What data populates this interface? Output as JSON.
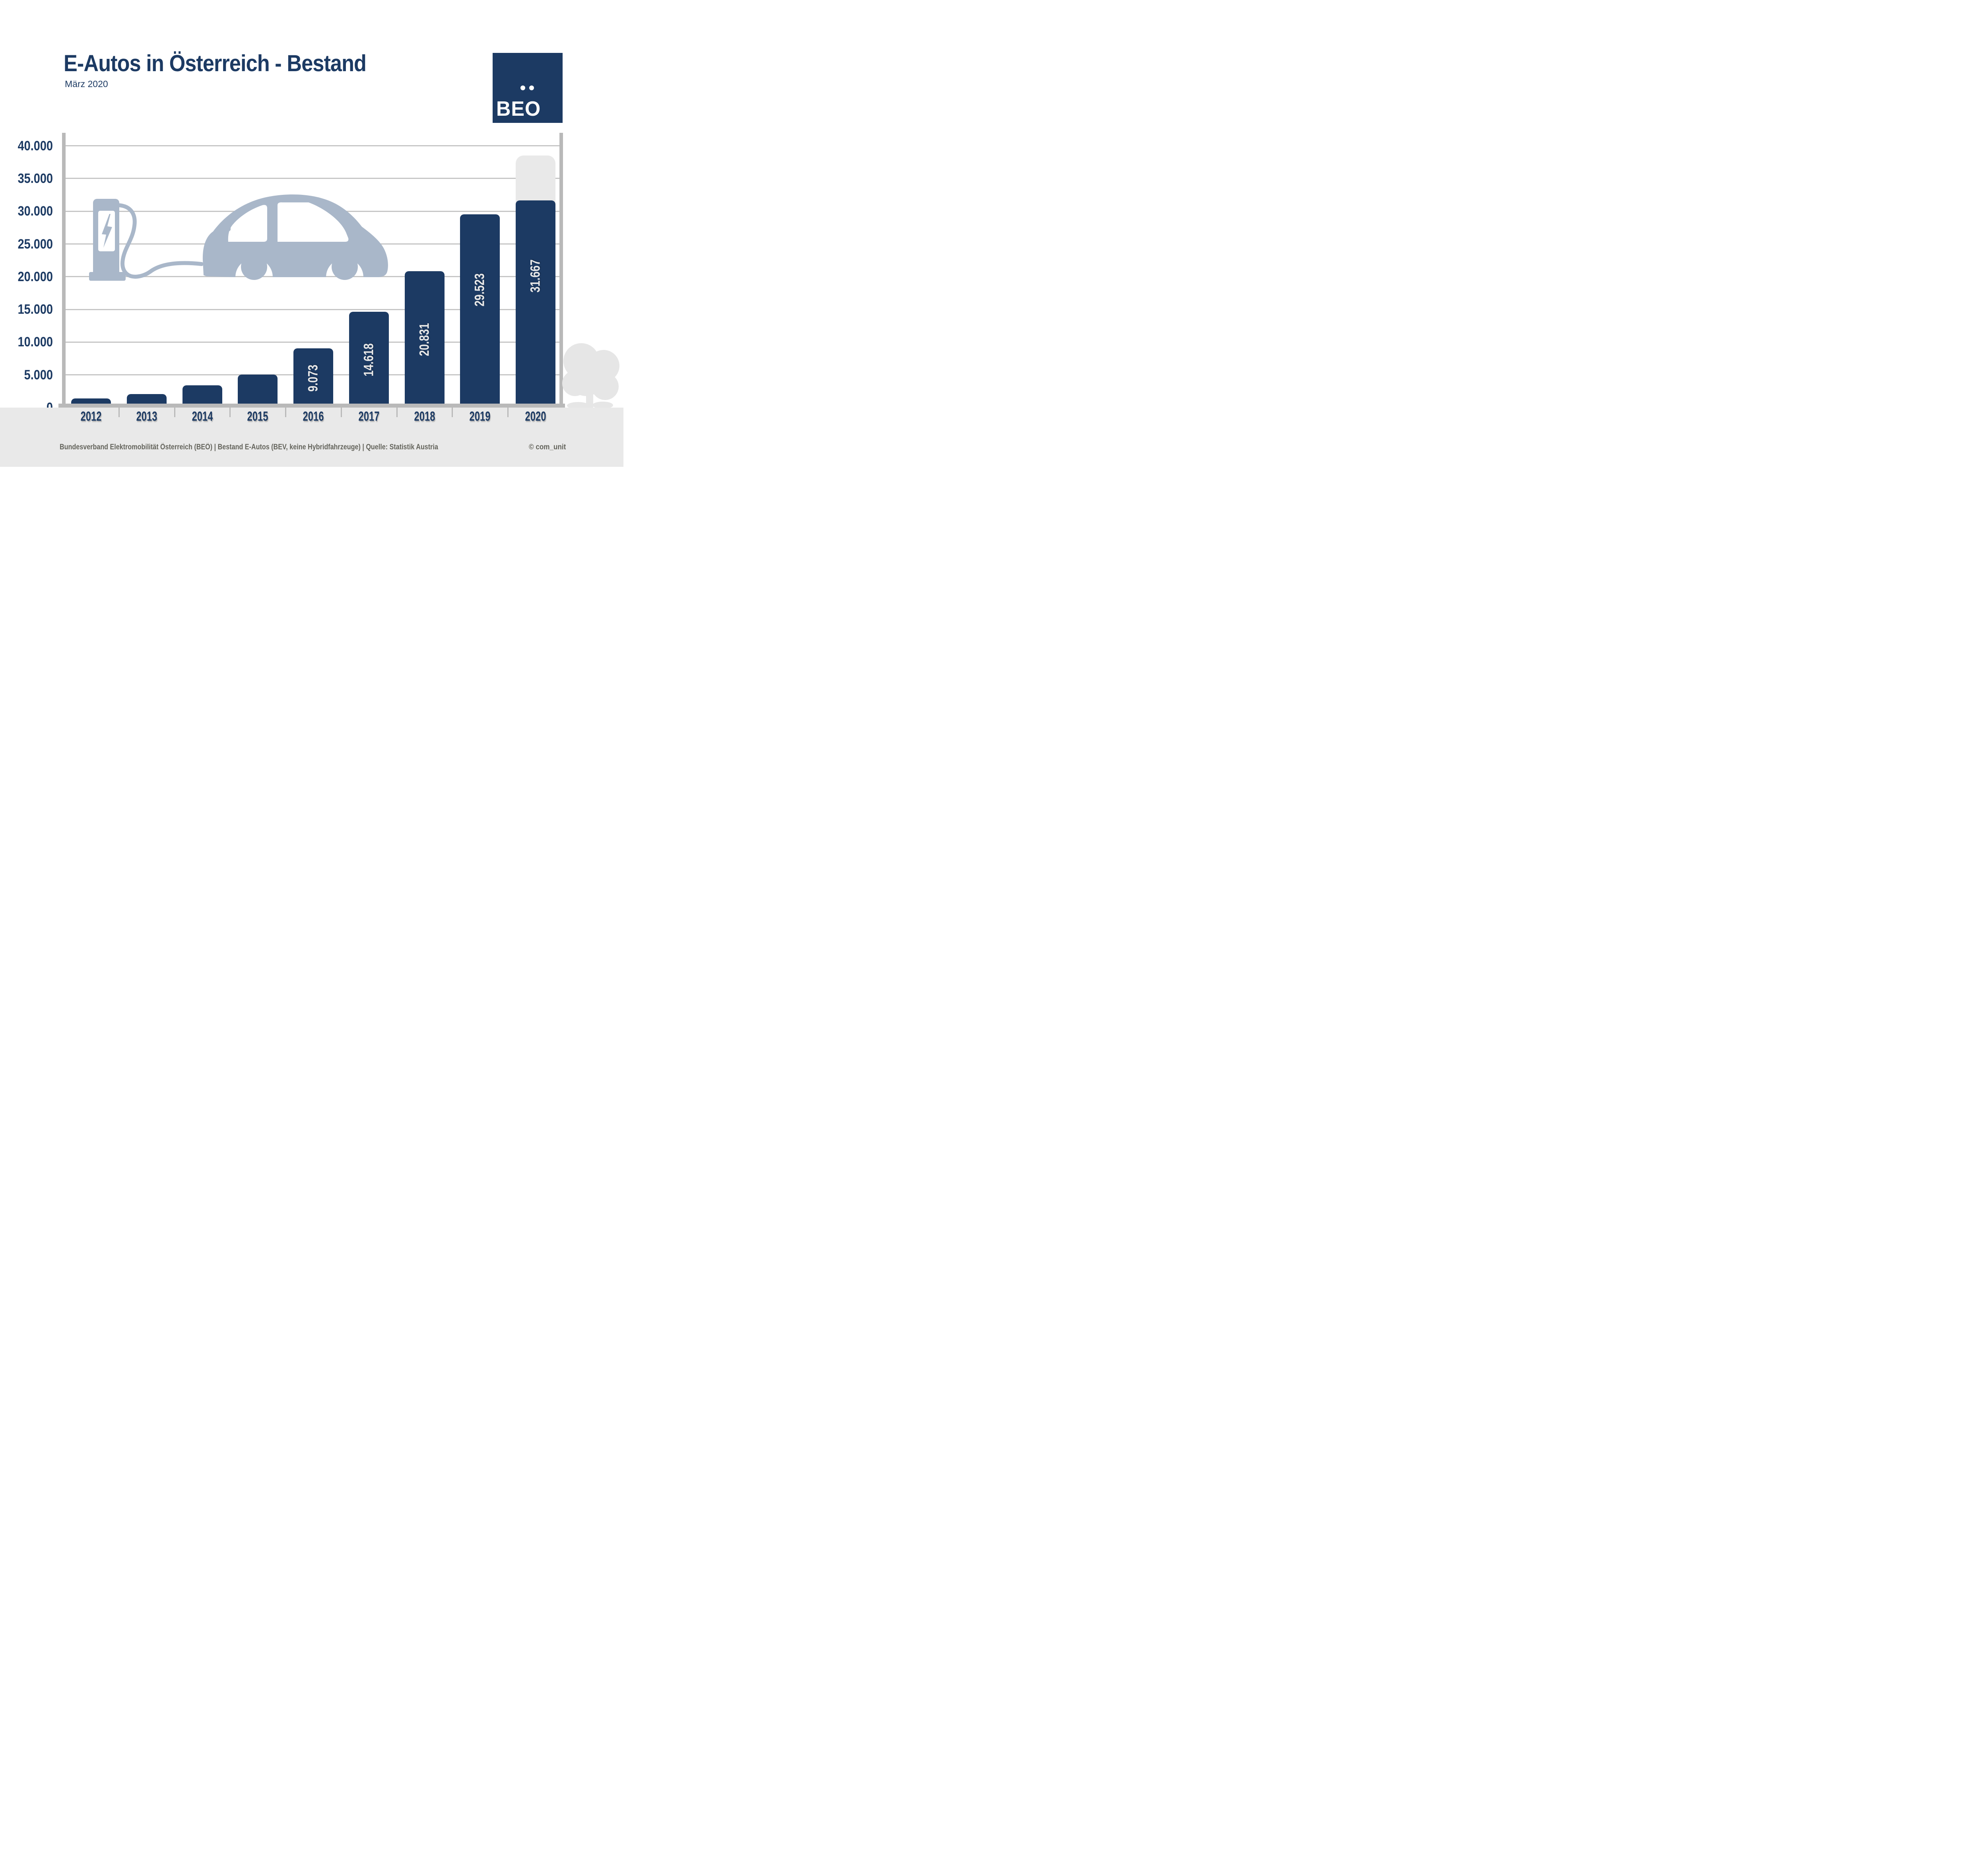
{
  "title": "E-Autos in Österreich - Bestand",
  "subtitle": "März 2020",
  "logo": {
    "text": "BEO",
    "dot_count": 2
  },
  "chart_data": {
    "type": "bar",
    "title": "E-Autos in Österreich - Bestand",
    "subtitle": "März 2020",
    "categories": [
      "2012",
      "2013",
      "2014",
      "2015",
      "2016",
      "2017",
      "2018",
      "2019",
      "2020"
    ],
    "values": [
      1389,
      2070,
      3386,
      5032,
      9073,
      14618,
      20831,
      29523,
      31667
    ],
    "bar_labels": [
      "",
      "",
      "",
      "",
      "9.073",
      "14.618",
      "20.831",
      "29.523",
      "31.667"
    ],
    "values_note": "2012-2015 bars are unlabeled; values estimated from bar heights",
    "projection_2020_estimate": 38500,
    "projection_note": "light gray rounded extension above the 2020 bar, unlabeled, approx. 38.500",
    "y_ticks": [
      {
        "value": 0,
        "label": "0"
      },
      {
        "value": 5000,
        "label": "5.000"
      },
      {
        "value": 10000,
        "label": "10.000"
      },
      {
        "value": 15000,
        "label": "15.000"
      },
      {
        "value": 20000,
        "label": "20.000"
      },
      {
        "value": 25000,
        "label": "25.000"
      },
      {
        "value": 30000,
        "label": "30.000"
      },
      {
        "value": 35000,
        "label": "35.000"
      },
      {
        "value": 40000,
        "label": "40.000"
      }
    ],
    "ylim": [
      0,
      40000
    ],
    "xlabel": "",
    "ylabel": "",
    "grid": "horizontal",
    "legend": "none"
  },
  "footer": {
    "source": "Bundesverband Elektromobilität Österreich (BEÖ) | Bestand E-Autos (BEV, keine Hybridfahrzeuge) | Quelle: Statistik Austria",
    "credit": "© com_unit"
  },
  "colors": {
    "navy": "#1c3a63",
    "bar_value_label": "#e8e8e8",
    "gridline": "#c6c6c6",
    "axis_gray": "#b9b9b9",
    "footer_strip": "#e9e9e9",
    "ghost_bar": "#e9e9e9",
    "decor_blue_gray": "#a9b7c9",
    "tree_gray": "#e6e6e6",
    "footer_text": "#64645c"
  },
  "icons": {
    "charging_station": "charging-station-icon",
    "car": "car-icon",
    "tree": "tree-icon",
    "logo_dots": "umlaut-dots-icon"
  }
}
